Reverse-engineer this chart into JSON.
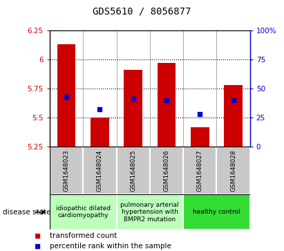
{
  "title": "GDS5610 / 8056877",
  "samples": [
    "GSM1648023",
    "GSM1648024",
    "GSM1648025",
    "GSM1648026",
    "GSM1648027",
    "GSM1648028"
  ],
  "transformed_counts": [
    6.13,
    5.5,
    5.91,
    5.97,
    5.42,
    5.78
  ],
  "percentile_ranks": [
    43,
    32,
    41,
    40,
    28,
    40
  ],
  "ylim_left": [
    5.25,
    6.25
  ],
  "ylim_right": [
    0,
    100
  ],
  "yticks_left": [
    5.25,
    5.5,
    5.75,
    6.0,
    6.25
  ],
  "ytick_labels_left": [
    "5.25",
    "5.5",
    "5.75",
    "6",
    "6.25"
  ],
  "yticks_right": [
    0,
    25,
    50,
    75,
    100
  ],
  "ytick_labels_right": [
    "0",
    "25",
    "50",
    "75",
    "100%"
  ],
  "bar_color": "#cc0000",
  "dot_color": "#0000cc",
  "bar_width": 0.55,
  "bar_bottom": 5.25,
  "groups": [
    {
      "label": "idiopathic dilated\ncardiomyopathy",
      "start": 0,
      "end": 2,
      "color": "#bbffbb"
    },
    {
      "label": "pulmonary arterial\nhypertension with\nBMPR2 mutation",
      "start": 2,
      "end": 4,
      "color": "#bbffbb"
    },
    {
      "label": "healthy control",
      "start": 4,
      "end": 6,
      "color": "#33dd33"
    }
  ],
  "sample_box_color": "#c8c8c8",
  "disease_state_label": "disease state",
  "legend_red_label": "transformed count",
  "legend_blue_label": "percentile rank within the sample",
  "title_fontsize": 10,
  "tick_fontsize": 7.5,
  "sample_fontsize": 6.5,
  "group_fontsize": 6.5
}
